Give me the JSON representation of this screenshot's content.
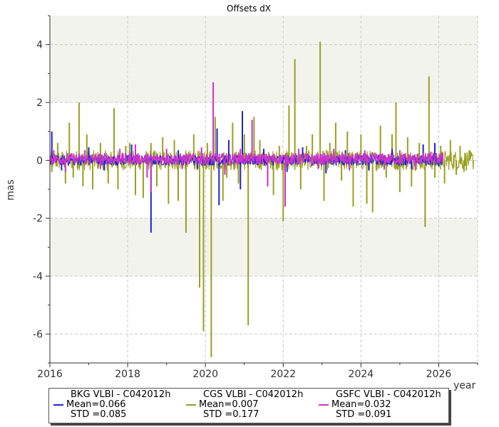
{
  "chart_data": {
    "type": "line",
    "title": "Offsets dX",
    "ylabel": "mas",
    "xlabel": "year",
    "xlim": [
      2016,
      2027
    ],
    "ylim": [
      -7,
      5
    ],
    "x_ticks": [
      "2016",
      "2018",
      "2020",
      "2022",
      "2024",
      "2026"
    ],
    "y_ticks": [
      "-6",
      "-4",
      "-2",
      "0",
      "2",
      "4"
    ],
    "grid": true,
    "shaded_bands": [
      [
        2,
        5
      ],
      [
        -4,
        -2
      ]
    ],
    "legend_position": "bottom",
    "series": [
      {
        "name": "BKG VLBI - C042012h",
        "color": "#2222cc",
        "mean_label": "Mean=0.066",
        "std_label": "STD =0.085",
        "spikes": [
          [
            2016.05,
            1.0
          ],
          [
            2016.3,
            -0.35
          ],
          [
            2017.0,
            0.45
          ],
          [
            2017.4,
            -0.35
          ],
          [
            2018.1,
            0.55
          ],
          [
            2018.6,
            -2.5
          ],
          [
            2019.3,
            0.35
          ],
          [
            2019.8,
            -0.3
          ],
          [
            2020.3,
            1.1
          ],
          [
            2020.35,
            -1.55
          ],
          [
            2020.6,
            0.7
          ],
          [
            2020.95,
            1.7
          ],
          [
            2020.9,
            -1.0
          ],
          [
            2021.5,
            0.4
          ],
          [
            2022.1,
            -0.4
          ],
          [
            2022.5,
            0.45
          ],
          [
            2023.1,
            -0.45
          ],
          [
            2023.6,
            0.35
          ],
          [
            2024.2,
            -0.35
          ],
          [
            2024.8,
            0.4
          ],
          [
            2025.3,
            -0.3
          ],
          [
            2025.6,
            0.55
          ],
          [
            2025.9,
            0.6
          ],
          [
            2026.0,
            -0.2
          ]
        ]
      },
      {
        "name": "CGS VLBI - C042012h",
        "color": "#99a020",
        "mean_label": "Mean=0.007",
        "std_label": "STD =0.177",
        "spikes": [
          [
            2016.05,
            -0.4
          ],
          [
            2016.2,
            0.6
          ],
          [
            2016.4,
            -0.8
          ],
          [
            2016.5,
            1.3
          ],
          [
            2016.6,
            -0.6
          ],
          [
            2016.75,
            2.0
          ],
          [
            2016.85,
            -0.9
          ],
          [
            2016.95,
            0.9
          ],
          [
            2017.1,
            -1.0
          ],
          [
            2017.3,
            0.6
          ],
          [
            2017.5,
            -0.8
          ],
          [
            2017.65,
            1.8
          ],
          [
            2017.75,
            -1.0
          ],
          [
            2017.95,
            0.5
          ],
          [
            2018.05,
            0.6
          ],
          [
            2018.2,
            -1.2
          ],
          [
            2018.4,
            -1.3
          ],
          [
            2018.6,
            0.6
          ],
          [
            2018.75,
            -0.9
          ],
          [
            2018.9,
            0.8
          ],
          [
            2019.05,
            -1.5
          ],
          [
            2019.2,
            0.7
          ],
          [
            2019.3,
            -1.4
          ],
          [
            2019.5,
            -2.5
          ],
          [
            2019.7,
            0.9
          ],
          [
            2019.85,
            -4.4
          ],
          [
            2019.95,
            -5.9
          ],
          [
            2020.05,
            0.6
          ],
          [
            2020.15,
            -6.8
          ],
          [
            2020.25,
            1.5
          ],
          [
            2020.45,
            -1.4
          ],
          [
            2020.55,
            -0.6
          ],
          [
            2020.7,
            1.3
          ],
          [
            2020.85,
            -0.8
          ],
          [
            2021.0,
            0.9
          ],
          [
            2021.1,
            -5.7
          ],
          [
            2021.25,
            1.5
          ],
          [
            2021.4,
            0.7
          ],
          [
            2021.6,
            -0.6
          ],
          [
            2021.75,
            -1.2
          ],
          [
            2021.9,
            0.5
          ],
          [
            2022.0,
            -2.1
          ],
          [
            2022.15,
            1.9
          ],
          [
            2022.3,
            3.5
          ],
          [
            2022.45,
            -1.0
          ],
          [
            2022.6,
            0.5
          ],
          [
            2022.75,
            0.9
          ],
          [
            2022.95,
            4.1
          ],
          [
            2023.05,
            -1.4
          ],
          [
            2023.2,
            0.6
          ],
          [
            2023.35,
            1.3
          ],
          [
            2023.5,
            -0.7
          ],
          [
            2023.65,
            1.0
          ],
          [
            2023.8,
            -1.6
          ],
          [
            2024.0,
            0.9
          ],
          [
            2024.15,
            -1.5
          ],
          [
            2024.3,
            -1.8
          ],
          [
            2024.5,
            1.2
          ],
          [
            2024.65,
            -0.6
          ],
          [
            2024.8,
            0.9
          ],
          [
            2024.9,
            2.0
          ],
          [
            2025.0,
            -1.1
          ],
          [
            2025.2,
            0.8
          ],
          [
            2025.3,
            -0.9
          ],
          [
            2025.5,
            0.6
          ],
          [
            2025.65,
            -2.3
          ],
          [
            2025.75,
            2.9
          ],
          [
            2025.9,
            -0.6
          ],
          [
            2026.05,
            0.5
          ],
          [
            2026.15,
            -0.8
          ],
          [
            2026.3,
            0.7
          ],
          [
            2026.45,
            -0.5
          ],
          [
            2026.55,
            0.5
          ],
          [
            2026.65,
            -0.4
          ],
          [
            2026.8,
            0.3
          ]
        ]
      },
      {
        "name": "GSFC VLBI - C042012h",
        "color": "#cc33cc",
        "mean_label": "Mean=0.032",
        "std_label": "STD =0.091",
        "spikes": [
          [
            2016.1,
            0.35
          ],
          [
            2016.4,
            -0.4
          ],
          [
            2016.9,
            0.35
          ],
          [
            2017.3,
            -0.3
          ],
          [
            2017.8,
            0.4
          ],
          [
            2018.2,
            0.55
          ],
          [
            2018.5,
            -0.6
          ],
          [
            2018.6,
            -1.1
          ],
          [
            2019.0,
            0.4
          ],
          [
            2019.4,
            -0.3
          ],
          [
            2019.9,
            0.45
          ],
          [
            2020.2,
            2.7
          ],
          [
            2020.5,
            -0.5
          ],
          [
            2020.9,
            0.4
          ],
          [
            2021.2,
            1.4
          ],
          [
            2021.6,
            -0.9
          ],
          [
            2022.05,
            -1.6
          ],
          [
            2022.4,
            0.4
          ],
          [
            2022.9,
            -0.3
          ],
          [
            2023.3,
            0.4
          ],
          [
            2023.7,
            -0.35
          ],
          [
            2024.1,
            0.35
          ],
          [
            2024.6,
            -0.3
          ],
          [
            2025.0,
            0.35
          ],
          [
            2025.4,
            -0.3
          ],
          [
            2025.8,
            0.3
          ],
          [
            2026.1,
            0.25
          ]
        ]
      }
    ]
  }
}
